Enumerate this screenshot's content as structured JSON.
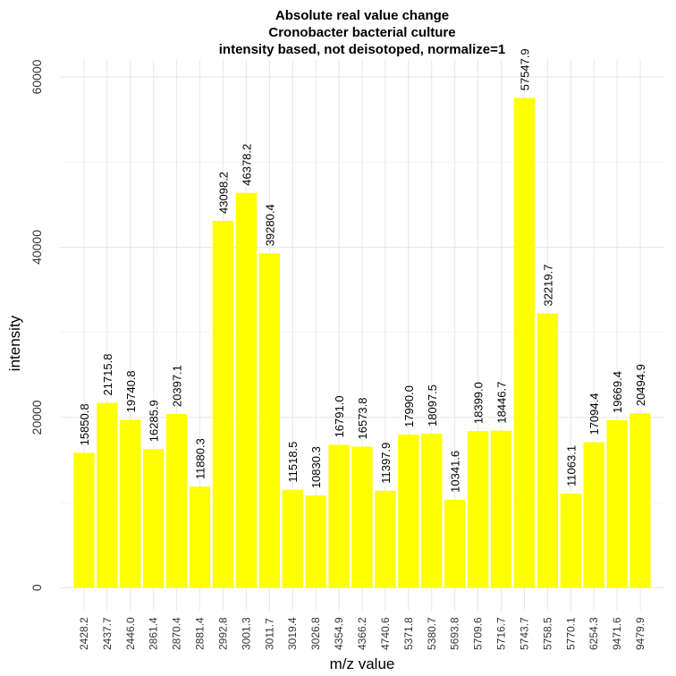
{
  "chart_data": {
    "type": "bar",
    "title": [
      "Absolute real value change",
      "Cronobacter bacterial culture",
      "intensity based, not deisotoped, normalize=1"
    ],
    "xlabel": "m/z value",
    "ylabel": "intensity",
    "categories": [
      "2428.2",
      "2437.7",
      "2446.0",
      "2861.4",
      "2870.4",
      "2881.4",
      "2992.8",
      "3001.3",
      "3011.7",
      "3019.4",
      "3026.8",
      "4354.9",
      "4366.2",
      "4740.6",
      "5371.8",
      "5380.7",
      "5693.8",
      "5709.6",
      "5716.7",
      "5743.7",
      "5758.5",
      "5770.1",
      "6254.3",
      "9471.6",
      "9479.9"
    ],
    "values": [
      15850.8,
      21715.8,
      19740.8,
      16285.9,
      20397.1,
      11880.3,
      43098.2,
      46378.2,
      39280.4,
      11518.5,
      10830.3,
      16791.0,
      16573.8,
      11397.9,
      17990.0,
      18097.5,
      10341.6,
      18399.0,
      18446.7,
      57547.9,
      32219.7,
      11063.1,
      17094.4,
      19669.4,
      20494.9
    ],
    "data_labels": [
      "15850.8",
      "21715.8",
      "19740.8",
      "16285.9",
      "20397.1",
      "11880.3",
      "43098.2",
      "46378.2",
      "39280.4",
      "11518.5",
      "10830.3",
      "16791.0",
      "16573.8",
      "11397.9",
      "17990.0",
      "18097.5",
      "10341.6",
      "18399.0",
      "18446.7",
      "57547.9",
      "32219.7",
      "11063.1",
      "17094.4",
      "19669.4",
      "20494.9"
    ],
    "yticks": [
      0,
      20000,
      40000,
      60000
    ],
    "ytick_labels": [
      "0",
      "20000",
      "40000",
      "60000"
    ],
    "ylim": [
      -2700,
      62000
    ],
    "grid": true,
    "bar_color": "#ffff00",
    "background_color": "#ffffff",
    "grid_color": "#e6e6e6"
  }
}
